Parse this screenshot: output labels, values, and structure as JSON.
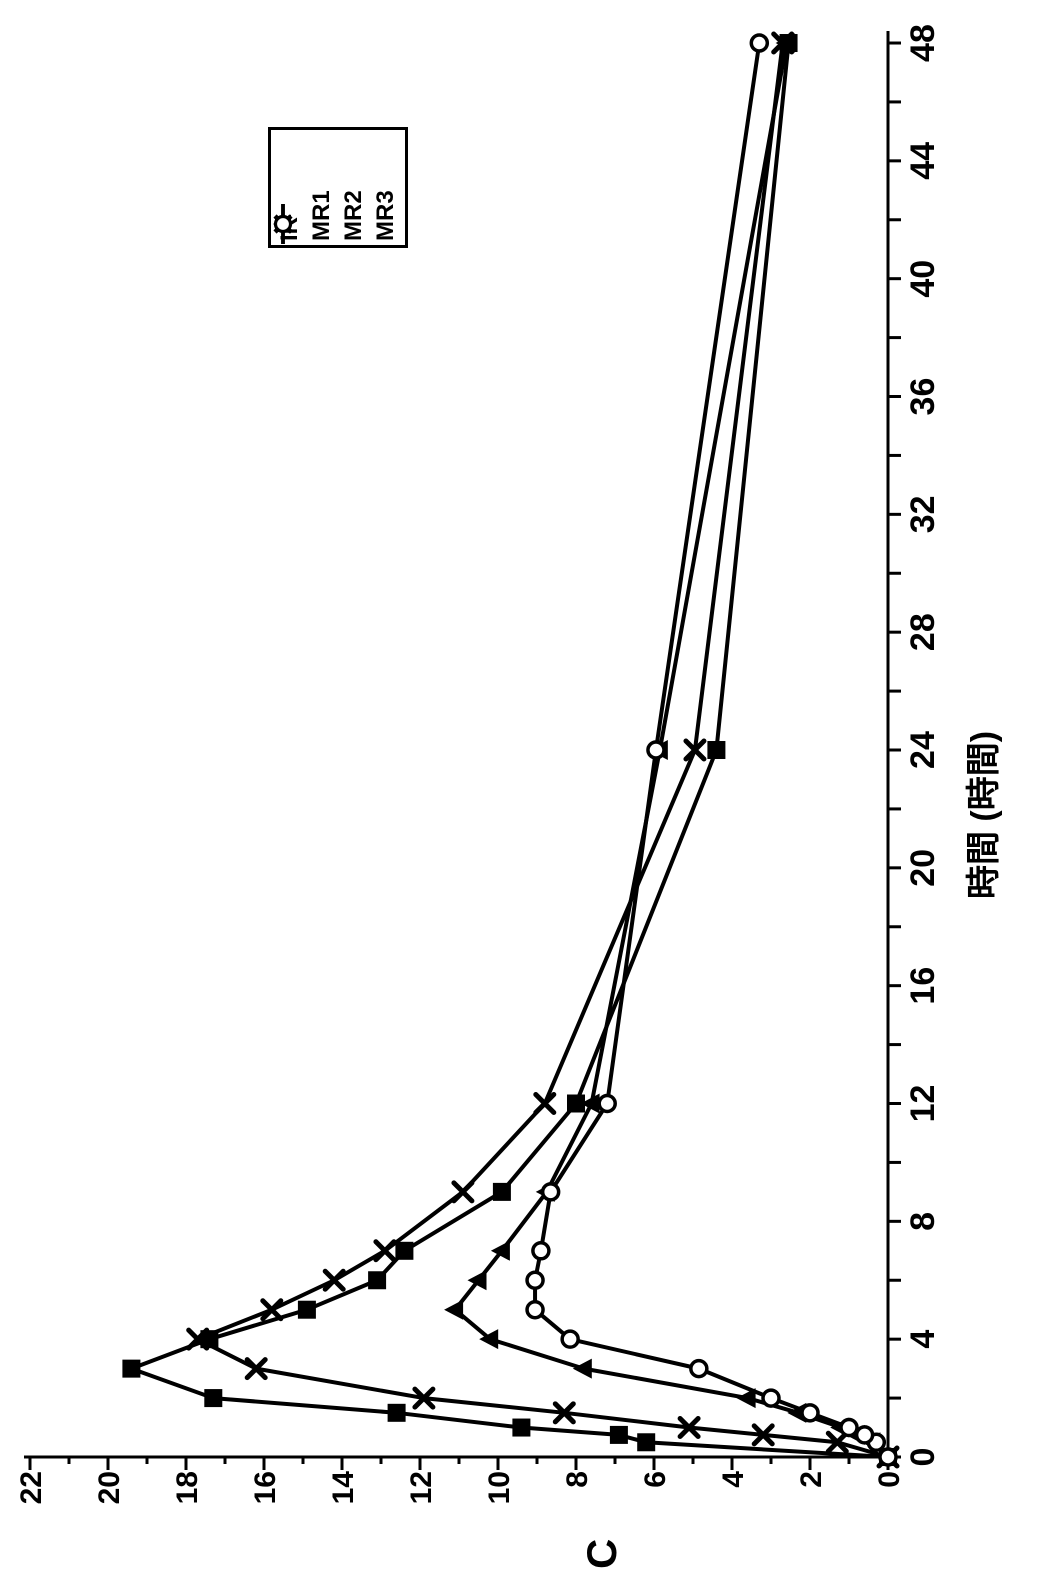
{
  "chart_data": {
    "type": "line",
    "title": "",
    "xlabel": "時間 (時間)",
    "ylabel": "C",
    "xlim": [
      0,
      48
    ],
    "ylim": [
      0,
      22
    ],
    "grid": false,
    "legend_position": "upper-right-inside",
    "rotation_on_page_degrees": -90,
    "x_tick_step": 2,
    "x_label_step": 4,
    "y_tick_step": 1,
    "y_label_step": 2,
    "x_tick_labels": [
      "0",
      "4",
      "8",
      "12",
      "16",
      "20",
      "24",
      "28",
      "32",
      "36",
      "40",
      "44",
      "48"
    ],
    "y_tick_labels": [
      "0",
      "2",
      "4",
      "6",
      "8",
      "10",
      "12",
      "14",
      "16",
      "18",
      "20",
      "22"
    ],
    "x": [
      0,
      0.5,
      0.75,
      1,
      1.5,
      2,
      3,
      4,
      5,
      6,
      7,
      9,
      12,
      24,
      48
    ],
    "series": [
      {
        "name": "IR",
        "marker": "filled-square",
        "values": [
          0,
          6.2,
          6.9,
          9.4,
          12.6,
          17.3,
          19.4,
          17.4,
          14.9,
          13.1,
          12.4,
          9.9,
          8.0,
          4.4,
          2.55
        ]
      },
      {
        "name": "MR1",
        "marker": "x-cross",
        "values": [
          0,
          1.3,
          3.2,
          5.1,
          8.3,
          11.9,
          16.2,
          17.7,
          15.8,
          14.2,
          12.9,
          10.9,
          8.8,
          4.95,
          2.7
        ]
      },
      {
        "name": "MR2",
        "marker": "filled-triangle",
        "values": [
          0,
          0.4,
          0.8,
          1.2,
          2.3,
          3.6,
          7.8,
          10.2,
          11.1,
          10.5,
          9.9,
          8.75,
          7.6,
          5.85,
          2.6
        ]
      },
      {
        "name": "MR3",
        "marker": "open-circle",
        "values": [
          0,
          0.3,
          0.6,
          1.0,
          2.0,
          3.0,
          4.85,
          8.15,
          9.05,
          9.05,
          8.9,
          8.65,
          7.2,
          5.95,
          3.3
        ]
      }
    ],
    "colors": {
      "ink": "#000000",
      "background": "#ffffff"
    }
  }
}
